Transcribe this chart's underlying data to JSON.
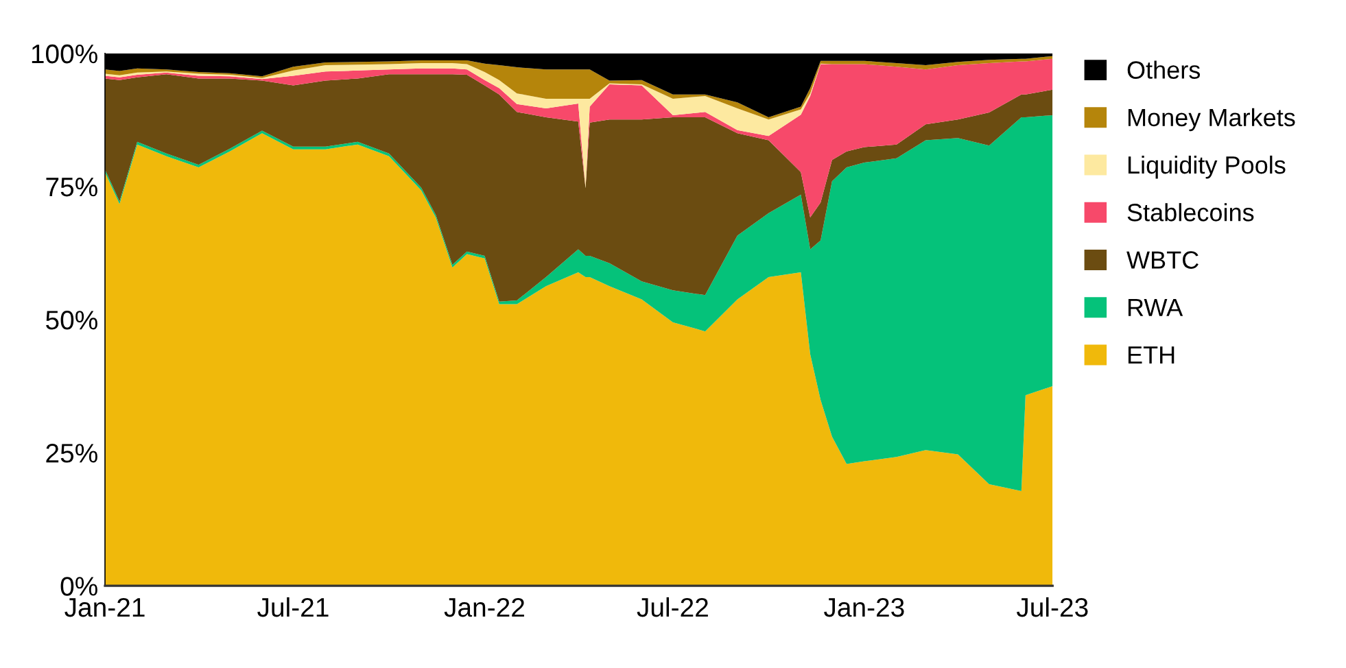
{
  "chart_data": {
    "type": "area",
    "stacked": true,
    "x": [
      "2021-01-01",
      "2021-01-15",
      "2021-02-01",
      "2021-03-01",
      "2021-04-01",
      "2021-05-01",
      "2021-06-01",
      "2021-07-01",
      "2021-08-01",
      "2021-09-01",
      "2021-10-01",
      "2021-11-01",
      "2021-11-15",
      "2021-12-01",
      "2021-12-15",
      "2022-01-01",
      "2022-01-15",
      "2022-02-01",
      "2022-03-01",
      "2022-04-01",
      "2022-04-08",
      "2022-04-12",
      "2022-05-01",
      "2022-06-01",
      "2022-07-01",
      "2022-08-01",
      "2022-09-01",
      "2022-10-01",
      "2022-11-01",
      "2022-11-10",
      "2022-11-20",
      "2022-12-01",
      "2022-12-15",
      "2023-01-01",
      "2023-02-01",
      "2023-03-01",
      "2023-04-01",
      "2023-05-01",
      "2023-06-01",
      "2023-06-05",
      "2023-07-01"
    ],
    "series": [
      {
        "name": "ETH",
        "color": "#f0b90b",
        "values": [
          77.7,
          71.7,
          82.9,
          80.7,
          78.6,
          81.6,
          85.0,
          82.0,
          82.0,
          82.9,
          80.7,
          74.3,
          69.2,
          59.8,
          62.3,
          61.5,
          52.9,
          52.9,
          56.3,
          58.9,
          58.0,
          58.0,
          56.3,
          53.8,
          49.5,
          47.8,
          53.8,
          58.0,
          58.9,
          43.5,
          34.9,
          28.0,
          22.9,
          23.4,
          24.2,
          25.5,
          24.7,
          19.1,
          17.8,
          35.8,
          37.5
        ]
      },
      {
        "name": "RWA",
        "color": "#05c27a",
        "values": [
          0.5,
          0.5,
          0.5,
          0.5,
          0.5,
          0.5,
          0.5,
          0.5,
          0.5,
          0.5,
          0.5,
          0.5,
          0.5,
          0.5,
          0.5,
          0.5,
          0.5,
          0.7,
          1.7,
          4.3,
          4.0,
          4.0,
          4.3,
          3.4,
          6.0,
          6.8,
          12.0,
          12.0,
          14.6,
          19.7,
          30.0,
          48.0,
          55.7,
          56.1,
          56.1,
          58.2,
          59.4,
          63.6,
          70.2,
          52.2,
          50.9
        ]
      },
      {
        "name": "WBTC",
        "color": "#6b4c11",
        "values": [
          17.1,
          22.8,
          12.1,
          14.9,
          16.2,
          13.2,
          9.4,
          11.5,
          12.4,
          11.9,
          14.9,
          21.3,
          26.4,
          35.8,
          33.2,
          32.0,
          38.9,
          35.4,
          30.0,
          24.0,
          12.7,
          25.0,
          27.0,
          30.4,
          32.5,
          33.4,
          19.2,
          13.7,
          4.2,
          6.0,
          7.1,
          4.0,
          3.0,
          2.9,
          2.6,
          3.0,
          3.5,
          6.2,
          4.3,
          4.3,
          4.8
        ]
      },
      {
        "name": "Stablecoins",
        "color": "#f7496a",
        "values": [
          0.5,
          0.5,
          0.5,
          0.3,
          0.5,
          0.4,
          0.3,
          1.8,
          1.7,
          1.5,
          0.9,
          1.1,
          1.1,
          1.1,
          1.0,
          1.0,
          1.2,
          1.5,
          1.7,
          3.4,
          0.0,
          3.0,
          6.6,
          6.4,
          0.4,
          1.0,
          0.6,
          0.8,
          10.8,
          22.8,
          26.0,
          18.0,
          16.4,
          15.6,
          14.6,
          10.3,
          10.2,
          9.3,
          6.2,
          6.2,
          5.8
        ]
      },
      {
        "name": "Liquidity Pools",
        "color": "#fde9a0",
        "values": [
          0.4,
          0.4,
          0.4,
          0.2,
          0.4,
          0.3,
          0.2,
          1.0,
          1.2,
          1.1,
          1.0,
          1.0,
          1.0,
          1.0,
          1.0,
          1.5,
          1.5,
          2.0,
          1.8,
          0.9,
          16.8,
          1.5,
          0.2,
          0.2,
          3.1,
          3.0,
          4.1,
          3.1,
          1.0,
          0.5,
          0.1,
          0,
          0,
          0,
          0,
          0,
          0,
          0,
          0,
          0,
          0
        ]
      },
      {
        "name": "Money Markets",
        "color": "#b5850b",
        "values": [
          0.8,
          0.8,
          0.8,
          0.4,
          0.3,
          0.3,
          0.3,
          0.7,
          0.5,
          0.5,
          0.5,
          0.5,
          0.5,
          0.5,
          0.7,
          1.6,
          2.8,
          4.9,
          5.5,
          5.5,
          5.5,
          5.5,
          0.5,
          0.8,
          0.8,
          0.3,
          1.1,
          0.4,
          0.5,
          1.0,
          0.5,
          0.6,
          0.6,
          0.6,
          0.7,
          0.8,
          0.6,
          0.6,
          0.5,
          0.5,
          0.5
        ]
      },
      {
        "name": "Others",
        "color": "#000000",
        "values": [
          3.0,
          3.3,
          2.8,
          3.0,
          3.5,
          3.7,
          4.3,
          2.5,
          1.7,
          1.6,
          1.5,
          1.3,
          1.3,
          1.3,
          1.3,
          1.9,
          2.2,
          2.6,
          3.0,
          3.0,
          3.0,
          3.0,
          5.1,
          5.0,
          7.7,
          7.7,
          9.2,
          12.0,
          10.0,
          6.5,
          1.4,
          1.4,
          1.4,
          1.4,
          1.8,
          2.2,
          1.6,
          1.2,
          1.0,
          1.0,
          0.5
        ]
      }
    ],
    "xlim": [
      "2021-01-01",
      "2023-07-01"
    ],
    "xticks": [
      {
        "value": "2021-01-01",
        "label": "Jan-21"
      },
      {
        "value": "2021-07-01",
        "label": "Jul-21"
      },
      {
        "value": "2022-01-01",
        "label": "Jan-22"
      },
      {
        "value": "2022-07-01",
        "label": "Jul-22"
      },
      {
        "value": "2023-01-01",
        "label": "Jan-23"
      },
      {
        "value": "2023-07-01",
        "label": "Jul-23"
      }
    ],
    "ylim": [
      0,
      100
    ],
    "yticks": [
      {
        "value": 0,
        "label": "0%"
      },
      {
        "value": 25,
        "label": "25%"
      },
      {
        "value": 50,
        "label": "50%"
      },
      {
        "value": 75,
        "label": "75%"
      },
      {
        "value": 100,
        "label": "100%"
      }
    ],
    "legend": "right",
    "grid": false
  }
}
